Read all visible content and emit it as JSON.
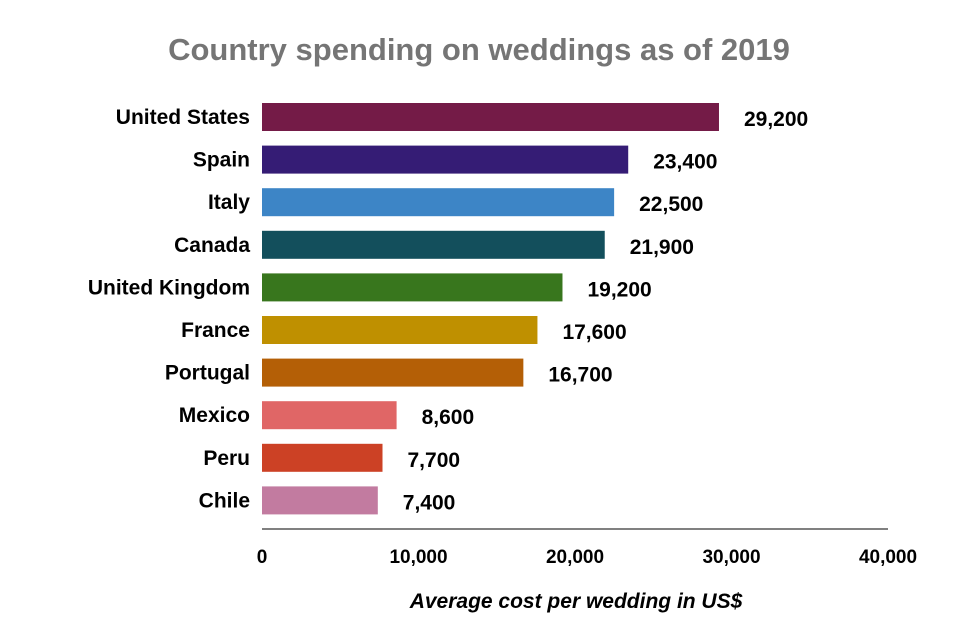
{
  "chart_data": {
    "type": "bar",
    "orientation": "horizontal",
    "title": "Country spending on weddings as of 2019",
    "xlabel": "Average cost per wedding in US$",
    "ylabel": "",
    "xlim": [
      0,
      40000
    ],
    "x_ticks": [
      0,
      10000,
      20000,
      30000,
      40000
    ],
    "x_tick_labels": [
      "0",
      "10,000",
      "20,000",
      "30,000",
      "40,000"
    ],
    "grid": false,
    "legend": "none",
    "categories": [
      "United States",
      "Spain",
      "Italy",
      "Canada",
      "United Kingdom",
      "France",
      "Portugal",
      "Mexico",
      "Peru",
      "Chile"
    ],
    "values": [
      29200,
      23400,
      22500,
      21900,
      19200,
      17600,
      16700,
      8600,
      7700,
      7400
    ],
    "value_labels": [
      "29,200",
      "23,400",
      "22,500",
      "21,900",
      "19,200",
      "17,600",
      "16,700",
      "8,600",
      "7,700",
      "7,400"
    ],
    "colors": [
      "#741b47",
      "#351c75",
      "#3d85c6",
      "#134f5c",
      "#38761d",
      "#bf9000",
      "#b45f06",
      "#e06666",
      "#cc4125",
      "#c27ba0"
    ],
    "title_color": "#757575",
    "axis_color": "#000000"
  }
}
